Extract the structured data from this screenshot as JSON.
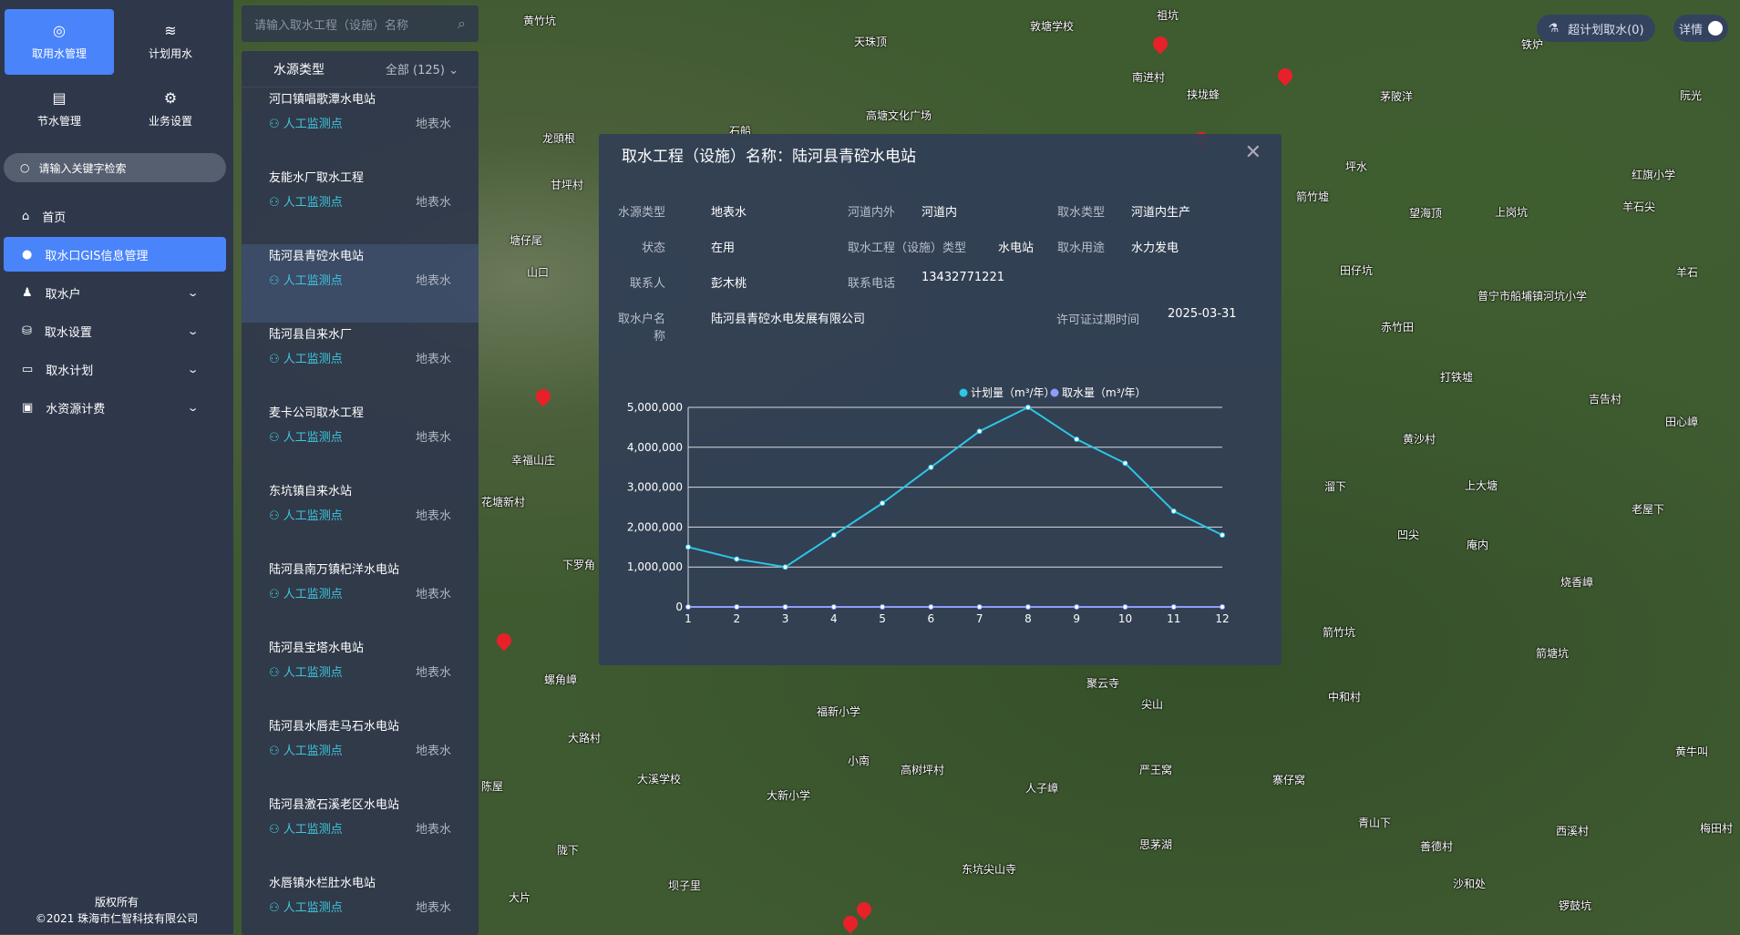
{
  "sidebar": {
    "tiles": [
      {
        "label": "取用水管理",
        "icon": "gauge-icon"
      },
      {
        "label": "计划用水",
        "icon": "waves-icon"
      },
      {
        "label": "节水管理",
        "icon": "document-icon"
      },
      {
        "label": "业务设置",
        "icon": "gear-icon"
      }
    ],
    "search_placeholder": "请输入关键字检索",
    "menu": [
      {
        "label": "首页",
        "icon": "home-icon"
      },
      {
        "label": "取水口GIS信息管理",
        "icon": "location-icon",
        "active": true
      },
      {
        "label": "取水户",
        "icon": "user-icon"
      },
      {
        "label": "取水设置",
        "icon": "database-icon"
      },
      {
        "label": "取水计划",
        "icon": "calendar-icon"
      },
      {
        "label": "水资源计费",
        "icon": "chart-icon"
      }
    ],
    "footer": {
      "line1": "版权所有",
      "line2": "©2021 珠海市仁智科技有限公司"
    }
  },
  "list": {
    "search_placeholder": "请输入取水工程（设施）名称",
    "filter_label": "水源类型",
    "filter_value": "全部 (125)",
    "items": [
      {
        "name": "河口镇唱歌潭水电站",
        "monitor": "人工监测点",
        "water": "地表水"
      },
      {
        "name": "友能水厂取水工程",
        "monitor": "人工监测点",
        "water": "地表水"
      },
      {
        "name": "陆河县青硿水电站",
        "monitor": "人工监测点",
        "water": "地表水",
        "selected": true
      },
      {
        "name": "陆河县自来水厂",
        "monitor": "人工监测点",
        "water": "地表水"
      },
      {
        "name": "麦卡公司取水工程",
        "monitor": "人工监测点",
        "water": "地表水"
      },
      {
        "name": "东坑镇自来水站",
        "monitor": "人工监测点",
        "water": "地表水"
      },
      {
        "name": "陆河县南万镇杞洋水电站",
        "monitor": "人工监测点",
        "water": "地表水"
      },
      {
        "name": "陆河县宝塔水电站",
        "monitor": "人工监测点",
        "water": "地表水"
      },
      {
        "name": "陆河县水唇走马石水电站",
        "monitor": "人工监测点",
        "water": "地表水"
      },
      {
        "name": "陆河县激石溪老区水电站",
        "monitor": "人工监测点",
        "water": "地表水"
      },
      {
        "name": "水唇镇水栏肚水电站",
        "monitor": "人工监测点",
        "water": "地表水"
      }
    ]
  },
  "topbar": {
    "over_plan": "超计划取水(0)",
    "detail": "详情",
    "detail_on": true
  },
  "popup": {
    "title": "取水工程（设施）名称：陆河县青硿水电站",
    "fields": {
      "source_type_label": "水源类型",
      "source_type": "地表水",
      "river_label": "河道内外",
      "river": "河道内",
      "intake_type_label": "取水类型",
      "intake_type": "河道内生产",
      "status_label": "状态",
      "status": "在用",
      "facility_type_label": "取水工程（设施）类型",
      "facility_type": "水电站",
      "usage_label": "取水用途",
      "usage": "水力发电",
      "contact_label": "联系人",
      "contact": "彭木桃",
      "phone_label": "联系电话",
      "phone": "13432771221",
      "owner_label": "取水户名称",
      "owner": "陆河县青硿水电发展有限公司",
      "expire_label": "许可证过期时间",
      "expire": "2025-03-31"
    }
  },
  "chart_data": {
    "type": "line",
    "x": [
      1,
      2,
      3,
      4,
      5,
      6,
      7,
      8,
      9,
      10,
      11,
      12
    ],
    "ylim": [
      0,
      5000000
    ],
    "yticks": [
      "0",
      "1,000,000",
      "2,000,000",
      "3,000,000",
      "4,000,000",
      "5,000,000"
    ],
    "grid": true,
    "legend": "top-right",
    "series": [
      {
        "name": "计划量（m³/年）",
        "color": "#2cc6e6",
        "values": [
          1500000,
          1200000,
          1000000,
          1800000,
          2600000,
          3500000,
          4400000,
          5000000,
          4200000,
          3600000,
          2400000,
          1800000
        ]
      },
      {
        "name": "取水量（m³/年）",
        "color": "#8f9dfa",
        "values": [
          0,
          0,
          0,
          0,
          0,
          0,
          0,
          0,
          0,
          0,
          0,
          0
        ]
      }
    ]
  },
  "map_labels": [
    "黄竹坑",
    "天珠顶",
    "敦塘学校",
    "祖坑",
    "南进村",
    "挟垅蜂",
    "高塘文化广场",
    "石船",
    "龙頭根",
    "甘坪村",
    "塘仔尾",
    "山口",
    "幸福山庄",
    "花塘新村",
    "下罗角",
    "螺角嶂",
    "大路村",
    "大溪学校",
    "大新小学",
    "福新小学",
    "小南",
    "高树坪村",
    "聚云寺",
    "尖山",
    "人子嶂",
    "严王窝",
    "东坑尖山寺",
    "思茅湖",
    "坝子里",
    "大片",
    "陈屋",
    "陇下",
    "坪水",
    "箭竹墟",
    "望海顶",
    "上岗坑",
    "红旗小学",
    "羊石尖",
    "田仔坑",
    "赤竹田",
    "打铁墟",
    "普宁市船埔镇河坑小学",
    "吉告村",
    "黄沙村",
    "上大塘",
    "溜下",
    "凹尖",
    "庵内",
    "烧香嶂",
    "老屋下",
    "田心嶂",
    "箭竹坑",
    "箭塘坑",
    "中和村",
    "寨仔窝",
    "青山下",
    "善德村",
    "西溪村",
    "沙和处",
    "锣鼓坑",
    "黄牛叫",
    "梅田村",
    "羊石",
    "阮光",
    "茅陂洋",
    "铁炉"
  ]
}
